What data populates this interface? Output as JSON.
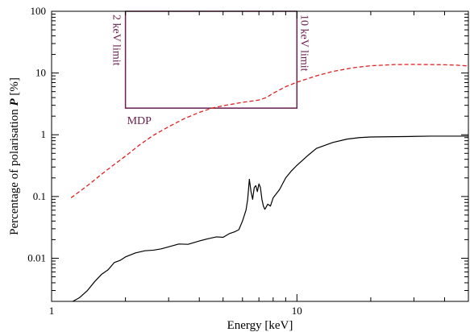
{
  "chart_data": {
    "type": "line",
    "x_scale": "log",
    "y_scale": "log",
    "xlim": [
      1,
      50
    ],
    "ylim": [
      0.002,
      100
    ],
    "xlabel": "Energy [keV]",
    "ylabel_prefix": "Percentage of polarisation ",
    "ylabel_symbol": "P",
    "ylabel_suffix": " [%]",
    "x_ticks": [
      {
        "value": 1,
        "label": "1"
      },
      {
        "value": 10,
        "label": "10"
      }
    ],
    "y_ticks": [
      {
        "value": 0.01,
        "label": "0.01"
      },
      {
        "value": 0.1,
        "label": "0.1"
      },
      {
        "value": 1,
        "label": "1"
      },
      {
        "value": 10,
        "label": "10"
      },
      {
        "value": 100,
        "label": "100"
      }
    ],
    "mdp_box": {
      "x_range": [
        2,
        10
      ],
      "y_range": [
        2.7,
        100
      ],
      "label": "MDP",
      "left_label": "2 keV limit",
      "right_label": "10 keV limit",
      "color": "#6b1f4f"
    },
    "series": [
      {
        "style": "solid",
        "color": "#000000",
        "x": [
          1.22,
          1.3,
          1.4,
          1.5,
          1.6,
          1.7,
          1.8,
          1.9,
          2.0,
          2.2,
          2.4,
          2.6,
          2.8,
          3.0,
          3.3,
          3.6,
          4.0,
          4.3,
          4.7,
          5.0,
          5.3,
          5.6,
          5.8,
          6.0,
          6.2,
          6.3,
          6.4,
          6.5,
          6.6,
          6.7,
          6.8,
          6.9,
          7.0,
          7.1,
          7.2,
          7.3,
          7.4,
          7.5,
          7.6,
          7.8,
          8.0,
          8.5,
          9.0,
          9.5,
          10.0,
          11.0,
          12.0,
          14.0,
          16.0,
          18.0,
          20.0,
          25.0,
          30.0,
          35.0,
          40.0,
          50.0
        ],
        "y": [
          0.002,
          0.0023,
          0.003,
          0.0042,
          0.0055,
          0.0065,
          0.0085,
          0.0092,
          0.0105,
          0.0122,
          0.0132,
          0.0135,
          0.0142,
          0.0153,
          0.017,
          0.0168,
          0.019,
          0.0205,
          0.0222,
          0.0218,
          0.025,
          0.027,
          0.029,
          0.04,
          0.06,
          0.09,
          0.19,
          0.12,
          0.09,
          0.14,
          0.15,
          0.12,
          0.16,
          0.14,
          0.09,
          0.07,
          0.062,
          0.068,
          0.075,
          0.07,
          0.095,
          0.13,
          0.2,
          0.26,
          0.32,
          0.45,
          0.6,
          0.75,
          0.85,
          0.9,
          0.92,
          0.93,
          0.94,
          0.95,
          0.95,
          0.95
        ]
      },
      {
        "style": "dashed",
        "color": "#e02020",
        "x": [
          1.2,
          1.4,
          1.6,
          1.8,
          2.0,
          2.3,
          2.6,
          3.0,
          3.5,
          4.0,
          4.5,
          5.0,
          5.5,
          6.0,
          6.5,
          7.0,
          7.5,
          8.0,
          9.0,
          10.0,
          12.0,
          14.0,
          17.0,
          20.0,
          25.0,
          30.0,
          35.0,
          40.0,
          45.0,
          50.0
        ],
        "y": [
          0.095,
          0.15,
          0.23,
          0.33,
          0.45,
          0.7,
          0.98,
          1.35,
          1.85,
          2.3,
          2.7,
          2.95,
          3.15,
          3.35,
          3.5,
          3.65,
          4.0,
          4.7,
          6.0,
          7.1,
          9.0,
          10.6,
          12.2,
          13.1,
          13.7,
          13.8,
          13.7,
          13.6,
          13.4,
          13.0
        ]
      }
    ]
  }
}
